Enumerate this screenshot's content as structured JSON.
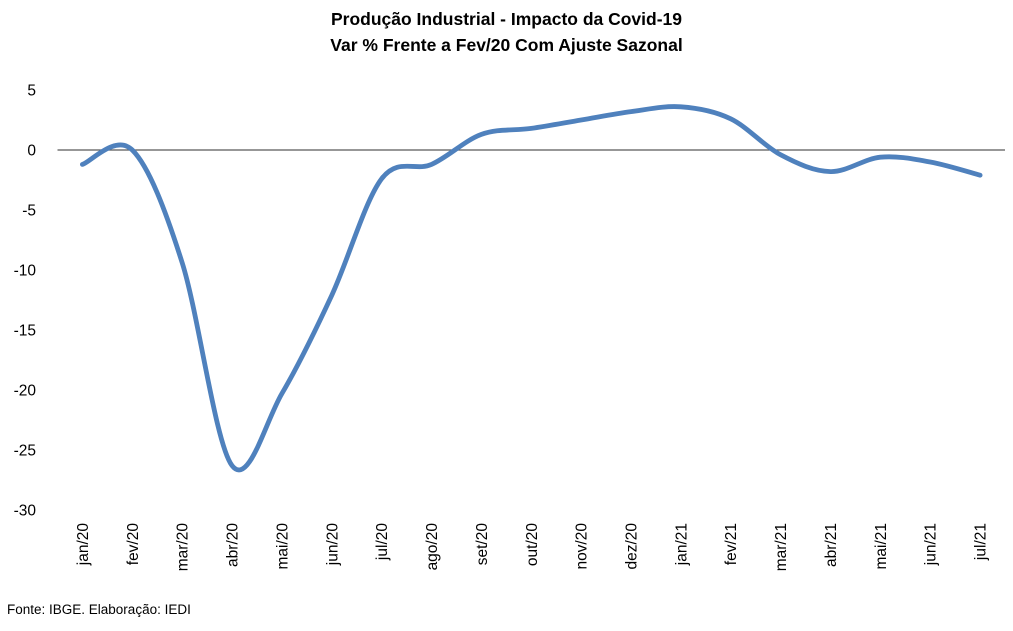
{
  "header": {
    "title_line1": "Produção Industrial - Impacto da Covid-19",
    "title_line2": "Var % Frente a Fev/20 Com Ajuste Sazonal"
  },
  "footer": {
    "source": "Fonte: IBGE. Elaboração: IEDI"
  },
  "chart_data": {
    "type": "line",
    "title": "Produção Industrial - Impacto da Covid-19",
    "subtitle": "Var % Frente a Fev/20 Com Ajuste Sazonal",
    "xlabel": "",
    "ylabel": "",
    "categories": [
      "jan/20",
      "fev/20",
      "mar/20",
      "abr/20",
      "mai/20",
      "jun/20",
      "jul/20",
      "ago/20",
      "set/20",
      "out/20",
      "nov/20",
      "dez/20",
      "jan/21",
      "fev/21",
      "mar/21",
      "abr/21",
      "mai/21",
      "jun/21",
      "jul/21"
    ],
    "values": [
      -1.2,
      0.0,
      -9.4,
      -26.3,
      -20.3,
      -12.1,
      -2.4,
      -1.2,
      1.3,
      1.8,
      2.5,
      3.2,
      3.6,
      2.6,
      -0.4,
      -1.8,
      -0.6,
      -1.0,
      -2.1
    ],
    "ylim": [
      -30,
      5
    ],
    "yticks": [
      5,
      0,
      -5,
      -10,
      -15,
      -20,
      -25,
      -30
    ],
    "x_tick_rotation_deg": 90,
    "grid": "none (zero axis line only)",
    "legend": "none",
    "smooth": true,
    "line_color": "#4F81BD",
    "axis_color": "#595959",
    "background_color": "#FFFFFF",
    "source_note": "Fonte: IBGE. Elaboração: IEDI"
  }
}
